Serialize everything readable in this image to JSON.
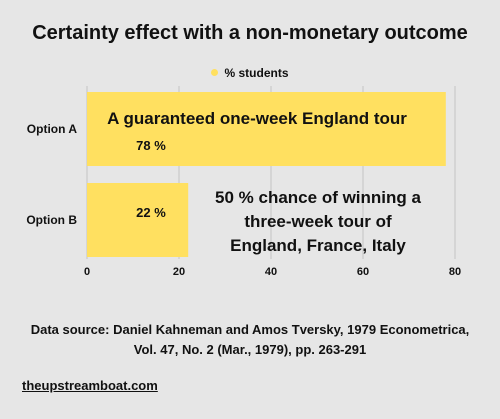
{
  "chart_data": {
    "type": "bar",
    "orientation": "horizontal",
    "title": "Certainty effect with a non-monetary outcome",
    "categories": [
      "Option A",
      "Option B"
    ],
    "series": [
      {
        "name": "% students",
        "values": [
          78,
          22
        ]
      }
    ],
    "value_labels": [
      "78 %",
      "22 %"
    ],
    "xlim": [
      0,
      80
    ],
    "xticks": [
      0,
      20,
      40,
      60,
      80
    ],
    "grid": true,
    "legend_position": "top",
    "bar_color": "#ffe060",
    "annotations": [
      {
        "category": "Option A",
        "lines": [
          "A guaranteed one-week England tour"
        ]
      },
      {
        "category": "Option B",
        "lines": [
          "50 % chance of winning a",
          "three-week tour of",
          "England, France, Italy"
        ]
      }
    ]
  },
  "footer": {
    "source_lines": [
      "Data source: Daniel Kahneman and Amos Tversky, 1979  Econometrica,",
      "Vol. 47, No. 2 (Mar., 1979), pp. 263-291"
    ],
    "site": "theupstreamboat.com"
  }
}
